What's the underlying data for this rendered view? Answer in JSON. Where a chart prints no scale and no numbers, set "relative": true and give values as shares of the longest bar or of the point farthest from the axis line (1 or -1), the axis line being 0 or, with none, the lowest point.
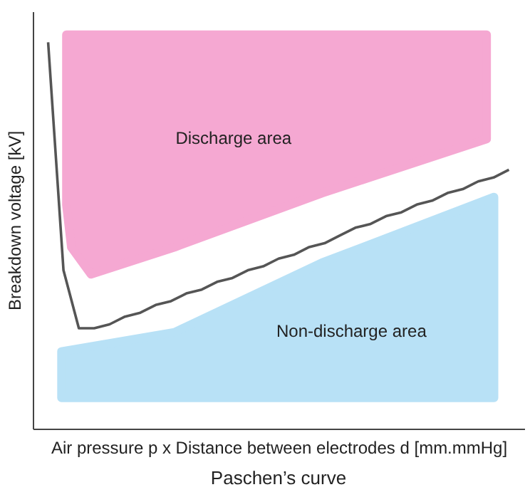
{
  "chart_data": {
    "type": "line",
    "title": "Paschen’s curve",
    "xlabel": "Air pressure p x Distance between electrodes d [mm.mmHg]",
    "ylabel": "Breakdown voltage [kV]",
    "relative": true,
    "tick_labels": false,
    "legend": false,
    "categories": [
      null,
      null,
      null,
      null,
      null,
      null,
      null,
      null,
      null,
      null,
      null,
      null,
      null,
      null,
      null,
      null,
      null,
      null,
      null,
      null,
      null,
      null,
      null,
      null,
      null,
      null,
      null,
      null,
      null,
      null,
      null
    ],
    "series": [
      {
        "color": "#555555",
        "values": [
          1.0,
          0.41,
          0.26,
          0.26,
          0.27,
          0.29,
          0.3,
          0.32,
          0.33,
          0.35,
          0.36,
          0.38,
          0.39,
          0.41,
          0.42,
          0.44,
          0.45,
          0.47,
          0.48,
          0.5,
          0.52,
          0.53,
          0.55,
          0.56,
          0.58,
          0.59,
          0.61,
          0.62,
          0.64,
          0.65,
          0.67
        ]
      }
    ],
    "annotations": [
      "Discharge area",
      "Non-discharge area"
    ]
  }
}
